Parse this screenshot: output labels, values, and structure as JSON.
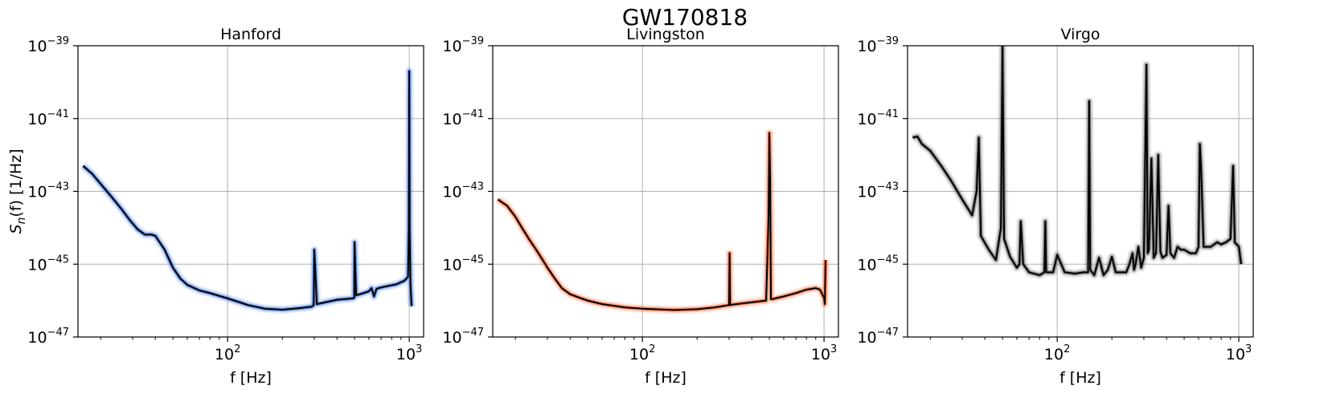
{
  "figure": {
    "title": "GW170818"
  },
  "chart_data": [
    {
      "type": "line",
      "title": "Hanford",
      "xlabel": "f [Hz]",
      "ylabel_main": "S",
      "ylabel_sub": "n",
      "ylabel_tail": "(f) [1/Hz]",
      "xscale": "log",
      "yscale": "log",
      "xlim": [
        15,
        1200
      ],
      "ylim": [
        1e-47,
        1e-39
      ],
      "grid": true,
      "band_color": "#4a7ee0",
      "median_color": "#000000",
      "x_ticks": [
        {
          "value": 100,
          "base": "10",
          "exp": "2"
        },
        {
          "value": 1000,
          "base": "10",
          "exp": "3"
        }
      ],
      "y_ticks": [
        {
          "value": 1e-47,
          "base": "10",
          "exp": "−47"
        },
        {
          "value": 1e-45,
          "base": "10",
          "exp": "−45"
        },
        {
          "value": 1e-43,
          "base": "10",
          "exp": "−43"
        },
        {
          "value": 1e-41,
          "base": "10",
          "exp": "−41"
        },
        {
          "value": 1e-39,
          "base": "10",
          "exp": "−39"
        }
      ],
      "series": [
        {
          "x": [
            16,
            18,
            20,
            23,
            26,
            29,
            32,
            35,
            38,
            40,
            45,
            50,
            55,
            60,
            70,
            80,
            100,
            130,
            160,
            200,
            250,
            290,
            298,
            300,
            310,
            400,
            490,
            498,
            500,
            510,
            560,
            600,
            620,
            640,
            660,
            700,
            760,
            850,
            940,
            985,
            995,
            1000,
            1005,
            1015,
            1030
          ],
          "y": [
            5e-43,
            3e-43,
            1.6e-43,
            7e-44,
            3.3e-44,
            1.6e-44,
            9e-45,
            6.5e-45,
            6.5e-45,
            6e-45,
            2.5e-45,
            8e-46,
            4e-46,
            2.7e-46,
            1.9e-46,
            1.6e-46,
            1.15e-46,
            7.5e-47,
            6e-47,
            5.6e-47,
            6.2e-47,
            6.8e-47,
            7.5e-47,
            2.5e-45,
            8e-47,
            1.05e-46,
            1.15e-46,
            1.2e-46,
            4e-45,
            1.4e-46,
            1.6e-46,
            1.8e-46,
            2.2e-46,
            1.3e-46,
            2.1e-46,
            2.3e-46,
            2.5e-46,
            2.8e-46,
            3.5e-46,
            4.5e-46,
            1e-44,
            2e-40,
            1e-44,
            3e-46,
            7e-47
          ]
        }
      ]
    },
    {
      "type": "line",
      "title": "Livingston",
      "xlabel": "f [Hz]",
      "xscale": "log",
      "yscale": "log",
      "xlim": [
        15,
        1200
      ],
      "ylim": [
        1e-47,
        1e-39
      ],
      "grid": true,
      "band_color": "#f36b3a",
      "median_color": "#000000",
      "x_ticks": [
        {
          "value": 100,
          "base": "10",
          "exp": "2"
        },
        {
          "value": 1000,
          "base": "10",
          "exp": "3"
        }
      ],
      "y_ticks": [
        {
          "value": 1e-47,
          "base": "10",
          "exp": "−47"
        },
        {
          "value": 1e-45,
          "base": "10",
          "exp": "−45"
        },
        {
          "value": 1e-43,
          "base": "10",
          "exp": "−43"
        },
        {
          "value": 1e-41,
          "base": "10",
          "exp": "−41"
        },
        {
          "value": 1e-39,
          "base": "10",
          "exp": "−39"
        }
      ],
      "series": [
        {
          "x": [
            16,
            18,
            20,
            22,
            24,
            26,
            28,
            30,
            33,
            36,
            40,
            45,
            50,
            60,
            80,
            100,
            150,
            200,
            250,
            300,
            302,
            304,
            306,
            310,
            400,
            480,
            495,
            500,
            505,
            510,
            520,
            600,
            700,
            800,
            900,
            950,
            1000,
            1010,
            1020
          ],
          "y": [
            6e-44,
            4e-44,
            2e-44,
            9e-45,
            4.5e-45,
            2.5e-45,
            1.4e-45,
            8e-46,
            4e-46,
            2.2e-46,
            1.5e-46,
            1.2e-46,
            1e-46,
            8e-47,
            6.5e-47,
            6e-47,
            5.5e-47,
            5.8e-47,
            6.5e-47,
            7.5e-47,
            2e-45,
            7.5e-47,
            7.6e-47,
            7.7e-47,
            9e-47,
            1e-46,
            2e-44,
            4e-42,
            2e-43,
            1.1e-46,
            1.1e-46,
            1.3e-46,
            1.6e-46,
            2e-46,
            2.2e-46,
            2e-46,
            1.2e-46,
            8e-47,
            1.3e-45
          ]
        }
      ]
    },
    {
      "type": "line",
      "title": "Virgo",
      "xlabel": "f [Hz]",
      "xscale": "log",
      "yscale": "log",
      "xlim": [
        15,
        1200
      ],
      "ylim": [
        1e-47,
        1e-39
      ],
      "grid": true,
      "band_color": "#6b6b6b",
      "median_color": "#000000",
      "x_ticks": [
        {
          "value": 100,
          "base": "10",
          "exp": "2"
        },
        {
          "value": 1000,
          "base": "10",
          "exp": "3"
        }
      ],
      "y_ticks": [
        {
          "value": 1e-47,
          "base": "10",
          "exp": "−47"
        },
        {
          "value": 1e-45,
          "base": "10",
          "exp": "−45"
        },
        {
          "value": 1e-43,
          "base": "10",
          "exp": "−43"
        },
        {
          "value": 1e-41,
          "base": "10",
          "exp": "−41"
        },
        {
          "value": 1e-39,
          "base": "10",
          "exp": "−39"
        }
      ],
      "series": [
        {
          "x": [
            16,
            17,
            18,
            20,
            23,
            26,
            30,
            34,
            36,
            37,
            38,
            42,
            46,
            49,
            50,
            51,
            55,
            60,
            62,
            63,
            65,
            70,
            80,
            85,
            86,
            87,
            95,
            100,
            110,
            125,
            140,
            148,
            150,
            152,
            160,
            170,
            180,
            190,
            200,
            210,
            220,
            240,
            250,
            260,
            265,
            270,
            280,
            290,
            300,
            310,
            315,
            320,
            330,
            340,
            350,
            360,
            370,
            380,
            400,
            410,
            420,
            440,
            460,
            480,
            500,
            540,
            580,
            600,
            610,
            620,
            640,
            700,
            760,
            800,
            850,
            900,
            930,
            950,
            1000,
            1030
          ],
          "y": [
            3e-42,
            3.2e-42,
            2e-42,
            1.3e-42,
            5e-43,
            2e-43,
            6e-44,
            2.2e-44,
            1e-43,
            3e-42,
            6e-45,
            2.5e-45,
            1.3e-45,
            1e-44,
            1e-39,
            5e-45,
            1.6e-45,
            8e-46,
            1e-45,
            1.5e-44,
            1e-45,
            6e-46,
            5e-46,
            6e-46,
            1.5e-44,
            6e-46,
            6e-46,
            1.8e-45,
            6e-46,
            5.5e-46,
            6e-46,
            6e-46,
            3e-41,
            7e-46,
            5e-46,
            1.5e-45,
            5e-46,
            7e-46,
            1.6e-45,
            6e-46,
            6e-46,
            6e-46,
            1e-45,
            2e-45,
            7e-46,
            1e-45,
            3e-45,
            8e-46,
            1.5e-45,
            3e-40,
            2e-45,
            2.5e-45,
            8e-43,
            1.5e-45,
            2e-45,
            1e-42,
            2.2e-45,
            1.5e-45,
            1.8e-45,
            4e-44,
            2e-45,
            1.5e-45,
            3e-45,
            2.5e-45,
            2.5e-45,
            2e-45,
            2e-45,
            3e-45,
            2e-42,
            4e-43,
            3e-45,
            3e-45,
            4e-45,
            3.5e-45,
            4e-45,
            5e-45,
            5e-43,
            4e-45,
            3e-45,
            1e-45
          ]
        }
      ]
    }
  ]
}
